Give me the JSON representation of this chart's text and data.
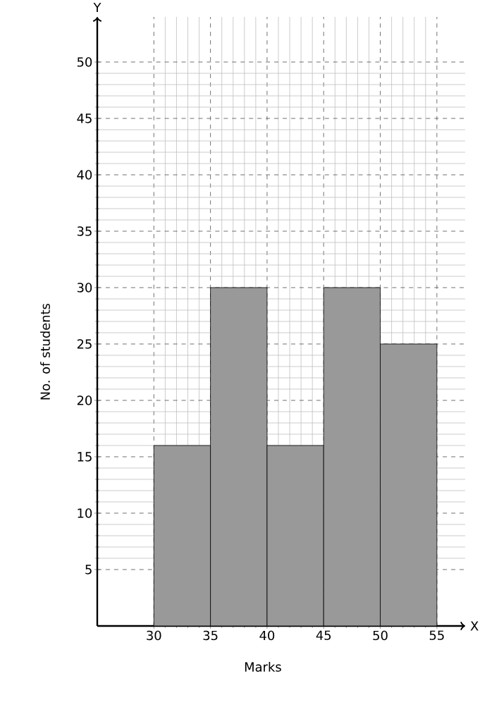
{
  "chart_data": {
    "type": "histogram",
    "xlabel": "Marks",
    "ylabel": "No. of students",
    "bins": [
      30,
      35,
      40,
      45,
      50,
      55
    ],
    "values": [
      16,
      30,
      16,
      30,
      25
    ],
    "color": "#999999",
    "xlim": [
      25,
      57.5
    ],
    "ylim": [
      0,
      54
    ],
    "xticks": [
      30,
      35,
      40,
      45,
      50,
      55
    ],
    "yticks": [
      5,
      10,
      15,
      20,
      25,
      30,
      35,
      40,
      45,
      50
    ],
    "grid": true,
    "annotations": [
      "Y",
      "X"
    ]
  }
}
